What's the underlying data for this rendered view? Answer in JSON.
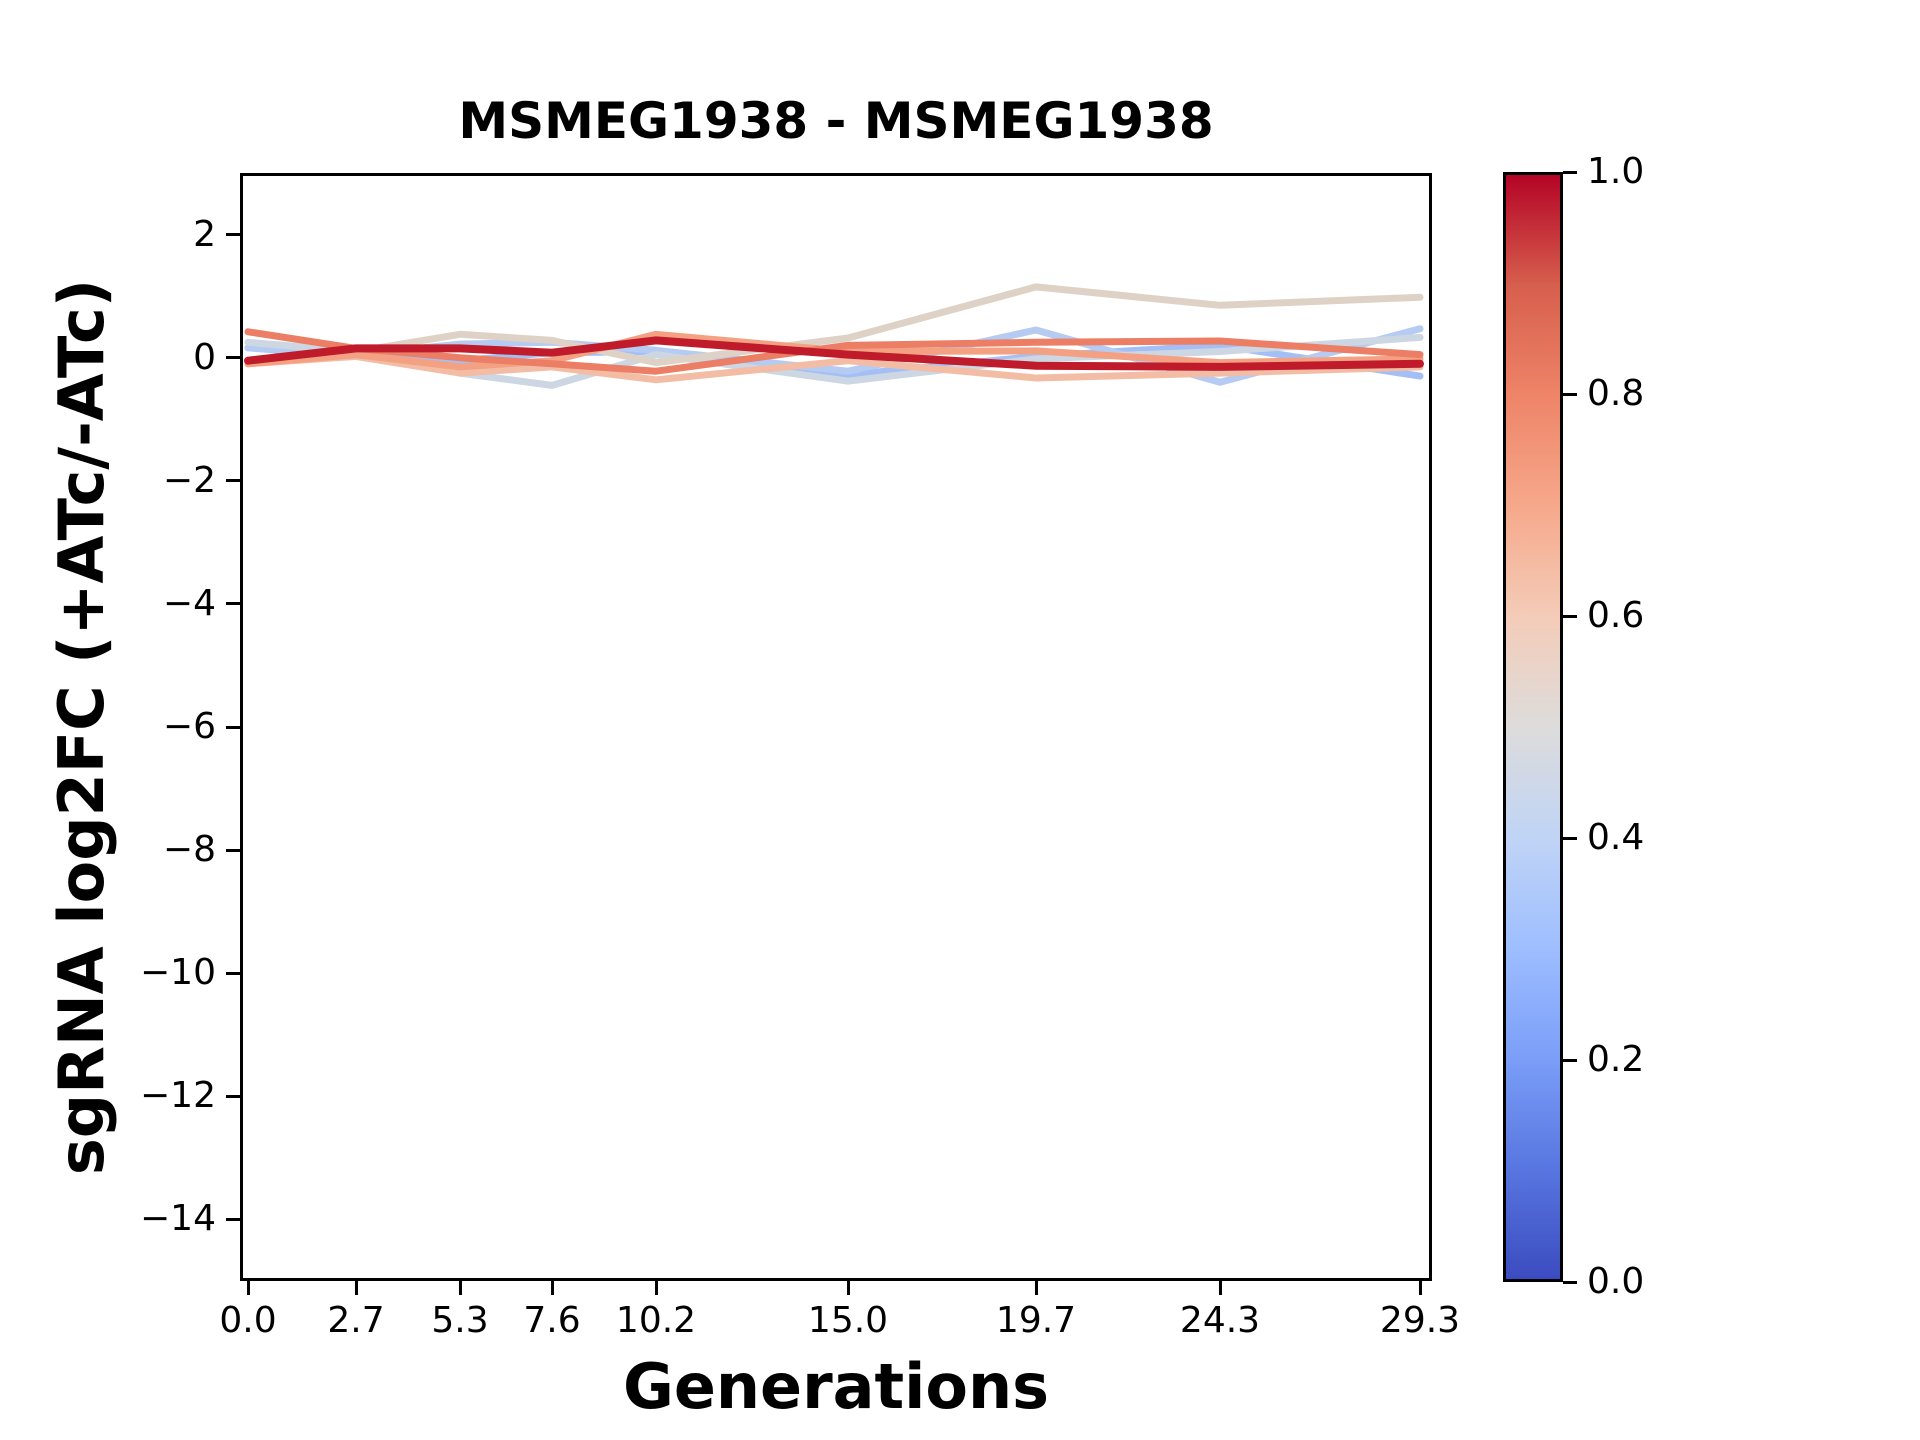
{
  "title": "MSMEG1938 - MSMEG1938",
  "chart_data": {
    "type": "line",
    "title": "MSMEG1938 - MSMEG1938",
    "xlabel": "Generations",
    "ylabel": "sgRNA log2FC (+ATc/-ATc)",
    "grid": false,
    "legend": "none (colorbar encodes line color value)",
    "xlim": [
      -0.2,
      29.6
    ],
    "ylim": [
      -15.0,
      3.0
    ],
    "x": [
      0.0,
      2.7,
      5.3,
      7.6,
      10.2,
      15.0,
      19.7,
      24.3,
      29.3
    ],
    "xtick_labels": [
      "0.0",
      "2.7",
      "5.3",
      "7.6",
      "10.2",
      "15.0",
      "19.7",
      "24.3",
      "29.3"
    ],
    "ytick_values": [
      2,
      0,
      -2,
      -4,
      -6,
      -8,
      -10,
      -12,
      -14
    ],
    "ytick_labels": [
      "2",
      "0",
      "−2",
      "−4",
      "−6",
      "−8",
      "−10",
      "−12",
      "−14"
    ],
    "series": [
      {
        "id": "line_8",
        "colormap_value": 0.34,
        "color": "#a3bff5",
        "width": 7,
        "values": [
          0.16,
          0.02,
          -0.05,
          0.08,
          0.1,
          -0.28,
          0.02,
          0.2,
          -0.3
        ]
      },
      {
        "id": "line_7",
        "colormap_value": 0.4,
        "color": "#b6cbf2",
        "width": 7,
        "values": [
          0.16,
          0.05,
          0.22,
          0.25,
          0.12,
          -0.22,
          0.45,
          -0.4,
          0.47
        ]
      },
      {
        "id": "line_6",
        "colormap_value": 0.47,
        "color": "#cdd6e3",
        "width": 7,
        "values": [
          0.25,
          0.1,
          -0.25,
          -0.45,
          0.05,
          -0.38,
          -0.02,
          0.1,
          0.33
        ]
      },
      {
        "id": "line_5",
        "colormap_value": 0.56,
        "color": "#ded2c6",
        "width": 7,
        "values": [
          -0.05,
          0.1,
          0.38,
          0.28,
          -0.08,
          0.32,
          1.15,
          0.85,
          0.98
        ]
      },
      {
        "id": "line_4",
        "colormap_value": 0.66,
        "color": "#f3bda5",
        "width": 7,
        "values": [
          -0.1,
          0.02,
          -0.25,
          -0.15,
          -0.36,
          -0.05,
          -0.33,
          -0.25,
          -0.15
        ]
      },
      {
        "id": "line_3",
        "colormap_value": 0.74,
        "color": "#f4a183",
        "width": 7,
        "values": [
          -0.1,
          0.05,
          -0.15,
          -0.05,
          0.38,
          0.1,
          0.11,
          -0.08,
          -0.02
        ]
      },
      {
        "id": "line_2",
        "colormap_value": 0.82,
        "color": "#eb7e64",
        "width": 7,
        "values": [
          0.42,
          0.15,
          0.0,
          -0.1,
          -0.22,
          0.2,
          0.25,
          0.27,
          0.05
        ]
      },
      {
        "id": "line_1",
        "colormap_value": 0.97,
        "color": "#bf1b2a",
        "width": 8,
        "values": [
          -0.05,
          0.15,
          0.15,
          0.08,
          0.28,
          0.05,
          -0.13,
          -0.15,
          -0.1
        ]
      }
    ],
    "colorbar": {
      "range": [
        0.0,
        1.0
      ],
      "tick_labels": [
        "1.0",
        "0.8",
        "0.6",
        "0.4",
        "0.2",
        "0.0"
      ],
      "tick_values": [
        1.0,
        0.8,
        0.6,
        0.4,
        0.2,
        0.0
      ],
      "cmap": "coolwarm",
      "gradient_bottom_to_top": [
        "#3b4cc0",
        "#5876e0",
        "#7b9ef8",
        "#9ebeff",
        "#c0d4f5",
        "#dddcdb",
        "#f4ccb8",
        "#f6a88b",
        "#ee8468",
        "#d65f4d",
        "#b40426"
      ]
    }
  }
}
